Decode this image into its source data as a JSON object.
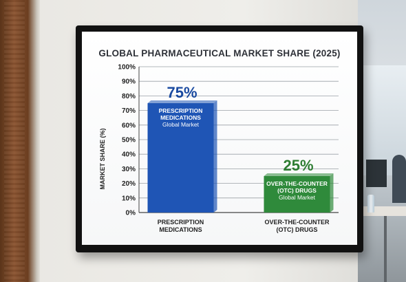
{
  "chart_data": {
    "type": "bar",
    "title": "GLOBAL PHARMACEUTICAL MARKET SHARE (2025)",
    "ylabel": "MARKET SHARE (%)",
    "xlabel": "",
    "ylim": [
      0,
      100
    ],
    "yticks": [
      "0%",
      "10%",
      "20%",
      "30%",
      "40%",
      "50%",
      "60%",
      "70%",
      "80%",
      "90%",
      "100%"
    ],
    "grid": true,
    "categories": [
      "PRESCRIPTION MEDICATIONS",
      "OVER-THE-COUNTER (OTC) DRUGS"
    ],
    "category_lines": [
      [
        "PRESCRIPTION",
        "MEDICATIONS"
      ],
      [
        "OVER-THE-COUNTER",
        "(OTC) DRUGS"
      ]
    ],
    "values": [
      75,
      25
    ],
    "value_labels": [
      "75%",
      "25%"
    ],
    "bar_labels": [
      [
        "PRESCRIPTION",
        "MEDICATIONS"
      ],
      [
        "OVER-THE-COUNTER",
        "(OTC) DRUGS"
      ]
    ],
    "bar_sublabels": [
      "Global Market",
      "Global Market"
    ],
    "colors": [
      "#1f55b5",
      "#2f8a3b"
    ],
    "value_label_colors": [
      "#1a4aa0",
      "#2e7d32"
    ]
  }
}
